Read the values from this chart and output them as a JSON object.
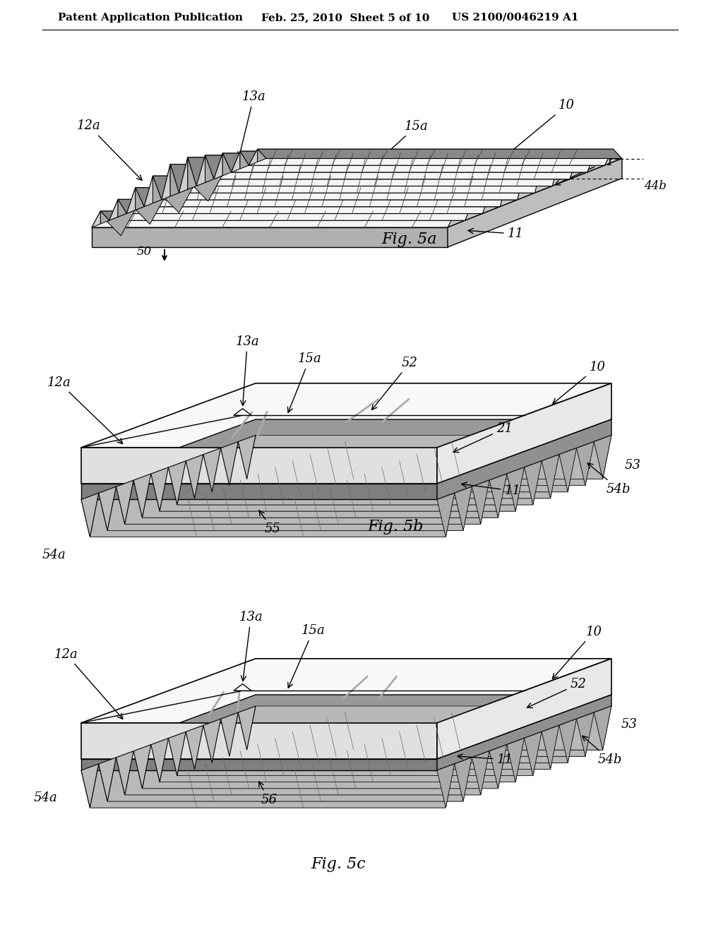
{
  "header_left": "Patent Application Publication",
  "header_mid": "Feb. 25, 2010  Sheet 5 of 10",
  "header_right": "US 2100/0046219 A1",
  "fig5a_label": "Fig. 5a",
  "fig5b_label": "Fig. 5b",
  "fig5c_label": "Fig. 5c",
  "bg_color": "#ffffff"
}
